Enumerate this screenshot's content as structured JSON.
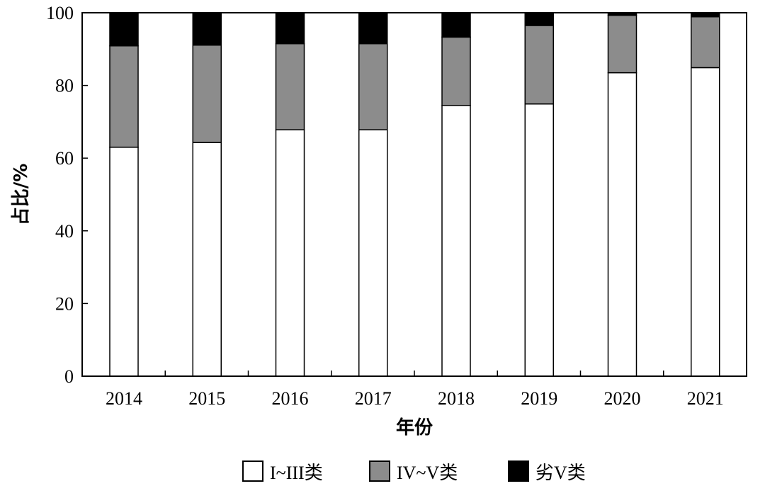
{
  "chart_data": {
    "type": "bar",
    "stacked": true,
    "categories": [
      "2014",
      "2015",
      "2016",
      "2017",
      "2018",
      "2019",
      "2020",
      "2021"
    ],
    "series": [
      {
        "name": "I~III类",
        "color": "#ffffff",
        "values": [
          63,
          64.3,
          67.8,
          67.8,
          74.5,
          74.9,
          83.5,
          84.9
        ]
      },
      {
        "name": "IV~V类",
        "color": "#8c8c8c",
        "values": [
          27.9,
          26.8,
          23.7,
          23.7,
          18.8,
          21.6,
          15.8,
          14.0
        ]
      },
      {
        "name": "劣V类",
        "color": "#000000",
        "values": [
          9.1,
          8.9,
          8.5,
          8.5,
          6.7,
          3.5,
          0.7,
          1.1
        ]
      }
    ],
    "xlabel": "年份",
    "ylabel": "占比/%",
    "ylim": [
      0,
      100
    ],
    "yticks": [
      "0",
      "20",
      "40",
      "60",
      "80",
      "100"
    ],
    "grid": false,
    "legend_position": "bottom"
  }
}
